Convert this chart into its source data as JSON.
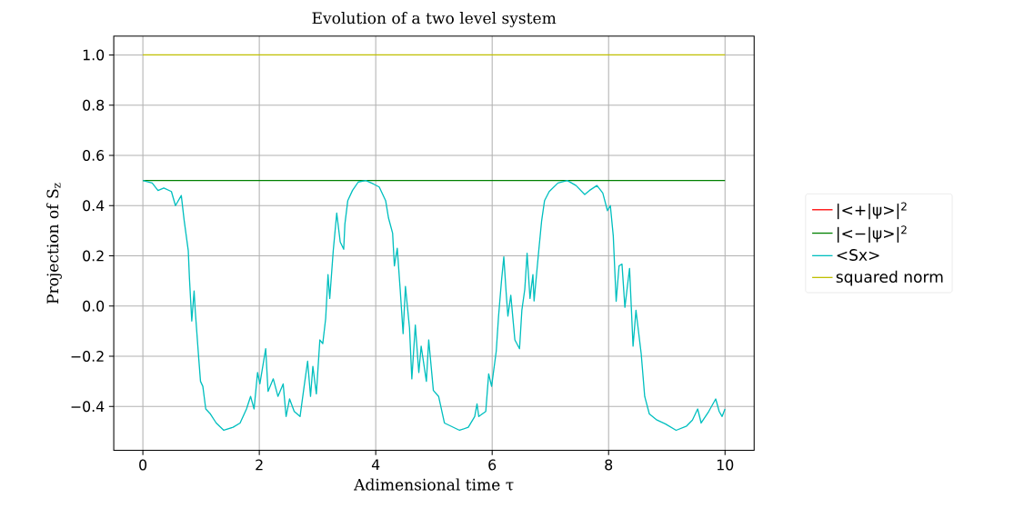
{
  "chart_data": {
    "type": "line",
    "title": "Evolution of a two level system",
    "xlabel": "Adimensional time τ",
    "ylabel": "Projection of S$_{z}$",
    "xlim": [
      -0.5,
      10.5
    ],
    "ylim": [
      -0.575,
      1.075
    ],
    "xticks": [
      0,
      2,
      4,
      6,
      8,
      10
    ],
    "yticks": [
      {
        "value": -0.4,
        "label": "−0.4"
      },
      {
        "value": -0.2,
        "label": "−0.2"
      },
      {
        "value": 0,
        "label": "0.0"
      },
      {
        "value": 0.2,
        "label": "0.2"
      },
      {
        "value": 0.4,
        "label": "0.4"
      },
      {
        "value": 0.6,
        "label": "0.6"
      },
      {
        "value": 0.8,
        "label": "0.8"
      },
      {
        "value": 1,
        "label": "1.0"
      }
    ],
    "grid": true,
    "legend": "right",
    "series": [
      {
        "name": "|<+|ψ>|$^{2}$",
        "color": "#ff0000"
      },
      {
        "name": "|<−|ψ>|$^{2}$",
        "color": "#008000",
        "x": [
          0,
          10
        ],
        "values": [
          0.5,
          0.5
        ]
      },
      {
        "name": "<Sx>",
        "color": "#00bfbf",
        "x": [
          0,
          0.16,
          0.26,
          0.36,
          0.49,
          0.56,
          0.66,
          0.71,
          0.78,
          0.8,
          0.84,
          0.88,
          0.9,
          0.96,
          0.99,
          1.03,
          1.08,
          1.16,
          1.26,
          1.39,
          1.55,
          1.67,
          1.78,
          1.85,
          1.91,
          1.97,
          2.01,
          2.11,
          2.15,
          2.24,
          2.32,
          2.41,
          2.46,
          2.52,
          2.6,
          2.7,
          2.77,
          2.83,
          2.88,
          2.92,
          2.98,
          3.04,
          3.09,
          3.14,
          3.18,
          3.21,
          3.27,
          3.33,
          3.39,
          3.45,
          3.47,
          3.52,
          3.6,
          3.7,
          3.83,
          3.96,
          4.06,
          4.17,
          4.22,
          4.29,
          4.32,
          4.37,
          4.42,
          4.47,
          4.51,
          4.58,
          4.62,
          4.68,
          4.74,
          4.78,
          4.87,
          4.91,
          4.99,
          5.08,
          5.18,
          5.44,
          5.59,
          5.7,
          5.74,
          5.77,
          5.89,
          5.94,
          5.99,
          6.07,
          6.11,
          6.16,
          6.2,
          6.24,
          6.27,
          6.32,
          6.39,
          6.47,
          6.51,
          6.56,
          6.6,
          6.65,
          6.7,
          6.72,
          6.8,
          6.85,
          6.9,
          6.98,
          7.13,
          7.29,
          7.44,
          7.59,
          7.67,
          7.8,
          7.9,
          7.98,
          8.03,
          8.08,
          8.13,
          8.18,
          8.23,
          8.28,
          8.36,
          8.42,
          8.47,
          8.56,
          8.62,
          8.7,
          8.83,
          8.98,
          9.16,
          9.34,
          9.44,
          9.53,
          9.59,
          9.72,
          9.84,
          9.9,
          9.95,
          10.0
        ],
        "values": [
          0.5,
          0.49,
          0.46,
          0.47,
          0.456,
          0.4,
          0.44,
          0.34,
          0.22,
          0.11,
          -0.06,
          0.06,
          -0.02,
          -0.21,
          -0.3,
          -0.32,
          -0.41,
          -0.43,
          -0.466,
          -0.495,
          -0.483,
          -0.466,
          -0.41,
          -0.36,
          -0.41,
          -0.265,
          -0.31,
          -0.17,
          -0.34,
          -0.29,
          -0.36,
          -0.31,
          -0.44,
          -0.37,
          -0.42,
          -0.44,
          -0.32,
          -0.22,
          -0.36,
          -0.24,
          -0.35,
          -0.135,
          -0.15,
          -0.05,
          0.125,
          0.03,
          0.22,
          0.37,
          0.255,
          0.226,
          0.326,
          0.42,
          0.46,
          0.494,
          0.5,
          0.486,
          0.474,
          0.42,
          0.35,
          0.29,
          0.16,
          0.23,
          0.066,
          -0.11,
          0.078,
          -0.087,
          -0.29,
          -0.076,
          -0.265,
          -0.16,
          -0.3,
          -0.135,
          -0.336,
          -0.36,
          -0.466,
          -0.495,
          -0.483,
          -0.44,
          -0.39,
          -0.44,
          -0.42,
          -0.27,
          -0.32,
          -0.18,
          -0.04,
          0.1,
          0.196,
          0.054,
          -0.04,
          0.043,
          -0.135,
          -0.17,
          -0.017,
          0.066,
          0.21,
          0.03,
          0.125,
          0.02,
          0.22,
          0.34,
          0.42,
          0.456,
          0.49,
          0.5,
          0.48,
          0.444,
          0.46,
          0.48,
          0.45,
          0.38,
          0.4,
          0.28,
          0.019,
          0.16,
          0.167,
          -0.005,
          0.15,
          -0.16,
          -0.017,
          -0.19,
          -0.36,
          -0.43,
          -0.454,
          -0.47,
          -0.495,
          -0.478,
          -0.454,
          -0.41,
          -0.466,
          -0.42,
          -0.37,
          -0.42,
          -0.44,
          -0.41
        ]
      },
      {
        "name": "squared norm",
        "color": "#bfbf00",
        "x": [
          0,
          10
        ],
        "values": [
          1,
          1
        ]
      }
    ]
  }
}
